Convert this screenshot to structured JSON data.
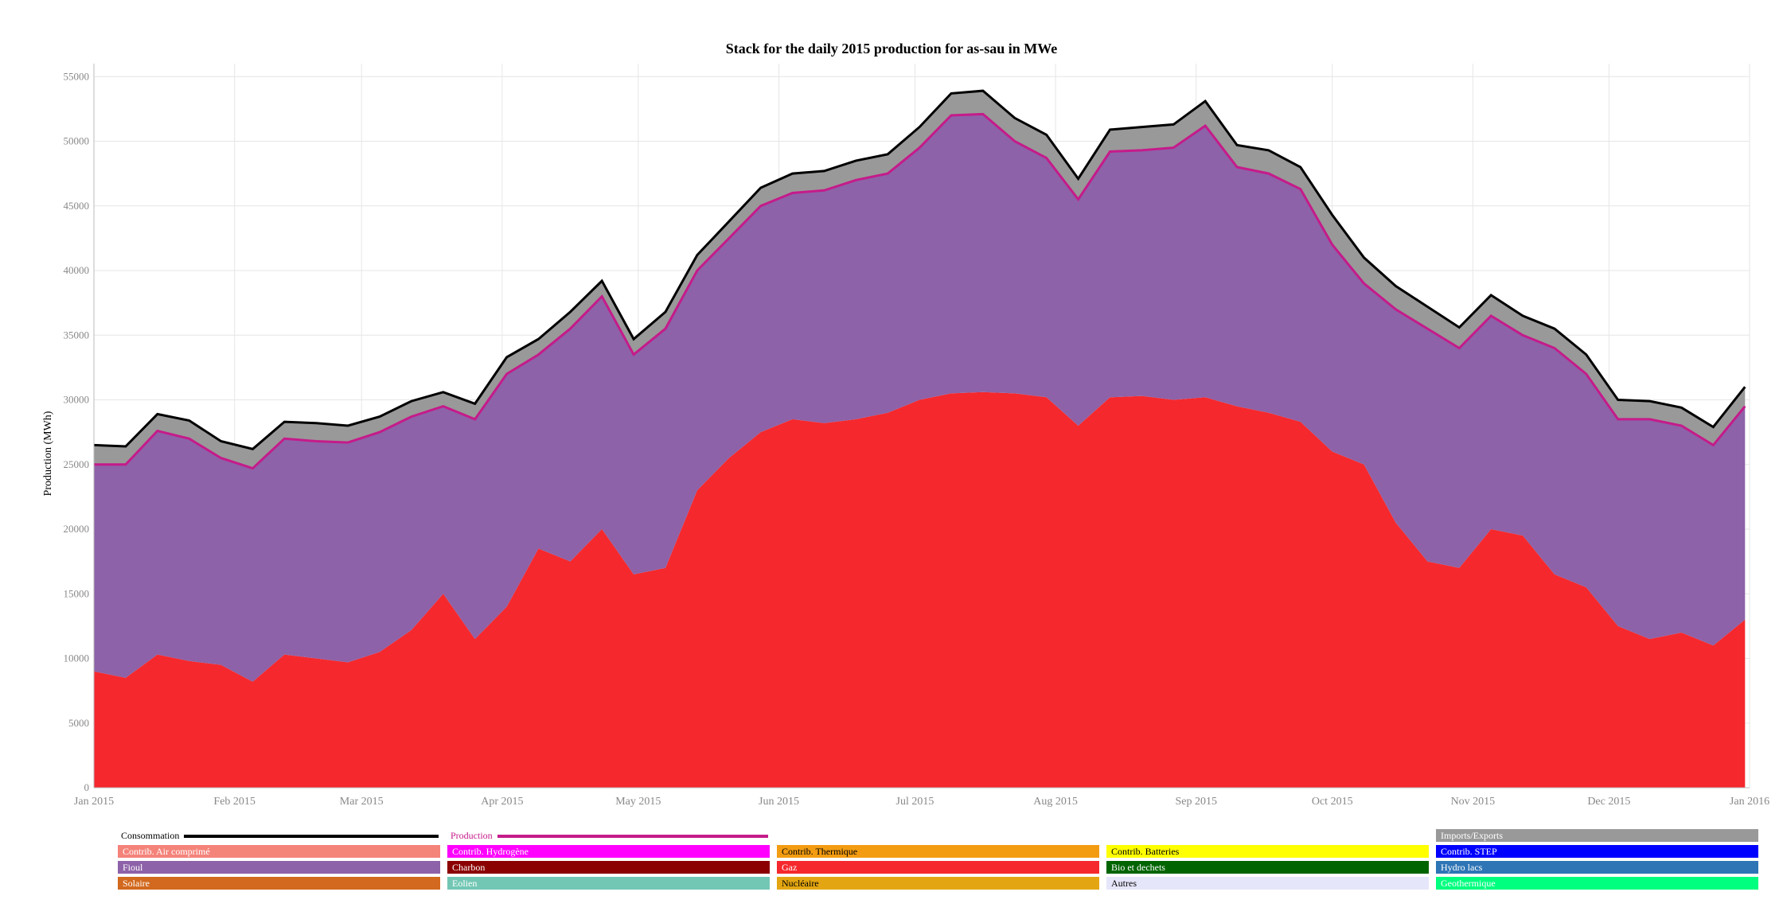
{
  "chart_data": {
    "type": "area",
    "title": "Stack for the daily 2015 production for as-sau in MWe",
    "ylabel": "Production (MWh)",
    "xlabel": "",
    "ylim": [
      0,
      56000
    ],
    "xlim": [
      "2015-01-01",
      "2016-01-01"
    ],
    "grid": true,
    "legend_position": "bottom",
    "yticks": [
      0,
      5000,
      10000,
      15000,
      20000,
      25000,
      30000,
      35000,
      40000,
      45000,
      50000,
      55000
    ],
    "xticks": [
      {
        "date": "2015-01-01",
        "label": "Jan 2015"
      },
      {
        "date": "2015-02-01",
        "label": "Feb 2015"
      },
      {
        "date": "2015-03-01",
        "label": "Mar 2015"
      },
      {
        "date": "2015-04-01",
        "label": "Apr 2015"
      },
      {
        "date": "2015-05-01",
        "label": "May 2015"
      },
      {
        "date": "2015-06-01",
        "label": "Jun 2015"
      },
      {
        "date": "2015-07-01",
        "label": "Jul 2015"
      },
      {
        "date": "2015-08-01",
        "label": "Aug 2015"
      },
      {
        "date": "2015-09-01",
        "label": "Sep 2015"
      },
      {
        "date": "2015-10-01",
        "label": "Oct 2015"
      },
      {
        "date": "2015-11-01",
        "label": "Nov 2015"
      },
      {
        "date": "2015-12-01",
        "label": "Dec 2015"
      },
      {
        "date": "2016-01-01",
        "label": "Jan 2016"
      }
    ],
    "x": [
      "2015-01-01",
      "2015-01-08",
      "2015-01-15",
      "2015-01-22",
      "2015-01-29",
      "2015-02-05",
      "2015-02-12",
      "2015-02-19",
      "2015-02-26",
      "2015-03-05",
      "2015-03-12",
      "2015-03-19",
      "2015-03-26",
      "2015-04-02",
      "2015-04-09",
      "2015-04-16",
      "2015-04-23",
      "2015-04-30",
      "2015-05-07",
      "2015-05-14",
      "2015-05-21",
      "2015-05-28",
      "2015-06-04",
      "2015-06-11",
      "2015-06-18",
      "2015-06-25",
      "2015-07-02",
      "2015-07-09",
      "2015-07-16",
      "2015-07-23",
      "2015-07-30",
      "2015-08-06",
      "2015-08-13",
      "2015-08-20",
      "2015-08-27",
      "2015-09-03",
      "2015-09-10",
      "2015-09-17",
      "2015-09-24",
      "2015-10-01",
      "2015-10-08",
      "2015-10-15",
      "2015-10-22",
      "2015-10-29",
      "2015-11-05",
      "2015-11-12",
      "2015-11-19",
      "2015-11-26",
      "2015-12-03",
      "2015-12-10",
      "2015-12-17",
      "2015-12-24",
      "2015-12-31"
    ],
    "series": [
      {
        "name": "Gaz",
        "color": "#f5282d",
        "values": [
          9000,
          8500,
          10300,
          9800,
          9500,
          8200,
          10300,
          10000,
          9700,
          10500,
          12200,
          15000,
          11500,
          14000,
          18500,
          17500,
          20000,
          16500,
          17000,
          23000,
          25500,
          27500,
          28500,
          28200,
          28500,
          29000,
          30000,
          30500,
          30600,
          30500,
          30200,
          28000,
          30200,
          30300,
          30000,
          30200,
          29500,
          29000,
          28300,
          26000,
          25000,
          20500,
          17500,
          17000,
          20000,
          19500,
          16500,
          15500,
          12500,
          11500,
          12000,
          11000,
          13000
        ],
        "rendering": "filled area from 0"
      },
      {
        "name": "Fioul",
        "color": "#8d62a8",
        "values": [
          16000,
          16500,
          17300,
          17200,
          16000,
          16500,
          16700,
          16800,
          17000,
          17000,
          16500,
          14500,
          17000,
          18000,
          15000,
          18000,
          18000,
          17000,
          18500,
          17000,
          17000,
          17500,
          17500,
          18000,
          18500,
          18500,
          19500,
          21500,
          21500,
          19500,
          18500,
          17500,
          19000,
          19000,
          19500,
          21000,
          18500,
          18500,
          18000,
          16000,
          14000,
          16500,
          18000,
          17000,
          16500,
          15500,
          17500,
          16500,
          16000,
          17000,
          16000,
          15500,
          16500
        ],
        "rendering": "stacked area on Gaz"
      },
      {
        "name": "Production",
        "color": "#c51b8a",
        "values": [
          25000,
          25000,
          27600,
          27000,
          25500,
          24700,
          27000,
          26800,
          26700,
          27500,
          28700,
          29500,
          28500,
          32000,
          33500,
          35500,
          38000,
          33500,
          35500,
          40000,
          42500,
          45000,
          46000,
          46200,
          47000,
          47500,
          49500,
          52000,
          52100,
          50000,
          48700,
          45500,
          49200,
          49300,
          49500,
          51200,
          48000,
          47500,
          46300,
          42000,
          39000,
          37000,
          35500,
          34000,
          36500,
          35000,
          34000,
          32000,
          28500,
          28500,
          28000,
          26500,
          29500
        ],
        "rendering": "line"
      },
      {
        "name": "Imports/Exports",
        "color": "#999999",
        "values": [
          1500,
          1400,
          1300,
          1400,
          1300,
          1500,
          1300,
          1400,
          1300,
          1200,
          1200,
          1100,
          1200,
          1300,
          1200,
          1300,
          1200,
          1200,
          1300,
          1200,
          1300,
          1400,
          1500,
          1500,
          1500,
          1500,
          1600,
          1700,
          1800,
          1800,
          1800,
          1600,
          1700,
          1800,
          1800,
          1900,
          1700,
          1800,
          1700,
          2300,
          2000,
          1800,
          1700,
          1600,
          1600,
          1500,
          1500,
          1500,
          1500,
          1400,
          1400,
          1400,
          1500
        ],
        "rendering": "stacked area on Production"
      },
      {
        "name": "Consommation",
        "color": "#000000",
        "values": [
          26500,
          26400,
          28900,
          28400,
          26800,
          26200,
          28300,
          28200,
          28000,
          28700,
          29900,
          30600,
          29700,
          33300,
          34700,
          36800,
          39200,
          34700,
          36800,
          41200,
          43800,
          46400,
          47500,
          47700,
          48500,
          49000,
          51100,
          53700,
          53900,
          51800,
          50500,
          47100,
          50900,
          51100,
          51300,
          53100,
          49700,
          49300,
          48000,
          44300,
          41000,
          38800,
          37200,
          35600,
          38100,
          36500,
          35500,
          33500,
          30000,
          29900,
          29400,
          27900,
          31000
        ],
        "rendering": "line"
      }
    ]
  },
  "legend": {
    "lines": [
      {
        "label": "Consommation",
        "color": "#000000"
      },
      {
        "label": "Production",
        "color": "#c51b8a"
      }
    ],
    "rows": [
      [
        {
          "label": "",
          "color": ""
        },
        {
          "label": "",
          "color": ""
        },
        {
          "label": "",
          "color": ""
        },
        {
          "label": "",
          "color": ""
        },
        {
          "label": "Imports/Exports",
          "color": "#999999"
        }
      ],
      [
        {
          "label": "Contrib. Air comprimé",
          "color": "#f4837a"
        },
        {
          "label": "Contrib. Hydrogène",
          "color": "#ff00ff"
        },
        {
          "label": "Contrib. Thermique",
          "color": "#f39c12"
        },
        {
          "label": "Contrib. Batteries",
          "color": "#ffff00"
        },
        {
          "label": "Contrib. STEP",
          "color": "#0000ff"
        }
      ],
      [
        {
          "label": "Fioul",
          "color": "#8d62a8"
        },
        {
          "label": "Charbon",
          "color": "#8b0000"
        },
        {
          "label": "Gaz",
          "color": "#f5282d"
        },
        {
          "label": "Bio et dechets",
          "color": "#006400"
        },
        {
          "label": "Hydro lacs",
          "color": "#2e75b6"
        }
      ],
      [
        {
          "label": "Solaire",
          "color": "#d2691e"
        },
        {
          "label": "Eolien",
          "color": "#72c7b4"
        },
        {
          "label": "Nucléaire",
          "color": "#e3a612"
        },
        {
          "label": "Autres",
          "color": "#e6e6fa"
        },
        {
          "label": "Geothermique",
          "color": "#00ff7f"
        }
      ]
    ]
  }
}
